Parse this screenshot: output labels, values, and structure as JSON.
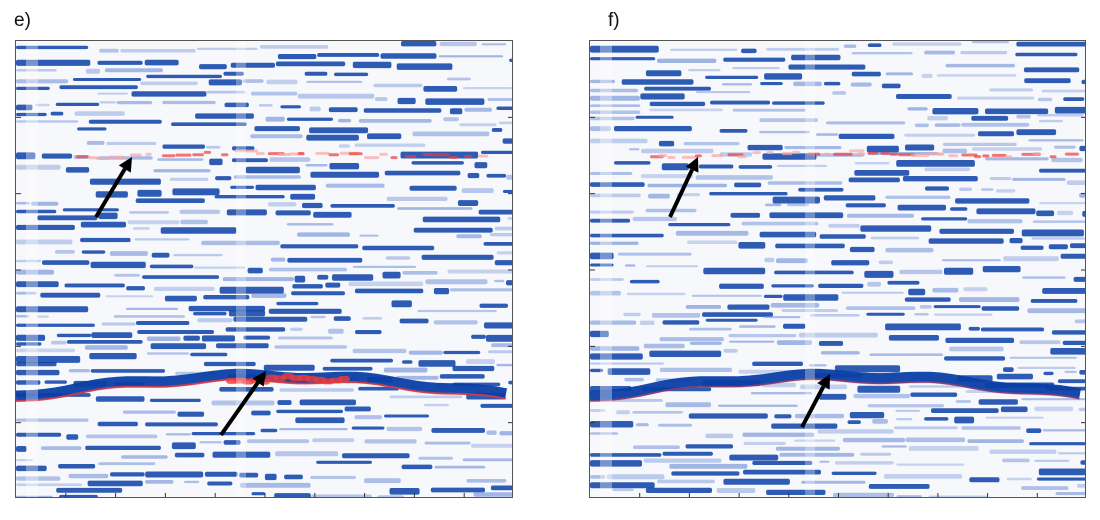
{
  "panels": [
    {
      "id": "e",
      "label": "e)",
      "colors": {
        "blue": "#0a3fa6",
        "blue_light": "#6f8fd6",
        "red": "#ef3b3b",
        "red_light": "#f6a6a6"
      },
      "arrows": [
        {
          "name": "upper-arrow",
          "direction": "up-right"
        },
        {
          "name": "lower-arrow",
          "direction": "up-right"
        }
      ]
    },
    {
      "id": "f",
      "label": "f)",
      "colors": {
        "blue": "#0a3fa6",
        "blue_light": "#6f8fd6",
        "red": "#ef3b3b",
        "red_light": "#f6a6a6"
      },
      "arrows": [
        {
          "name": "upper-arrow",
          "direction": "up-right"
        },
        {
          "name": "lower-arrow",
          "direction": "up-right"
        }
      ]
    }
  ]
}
